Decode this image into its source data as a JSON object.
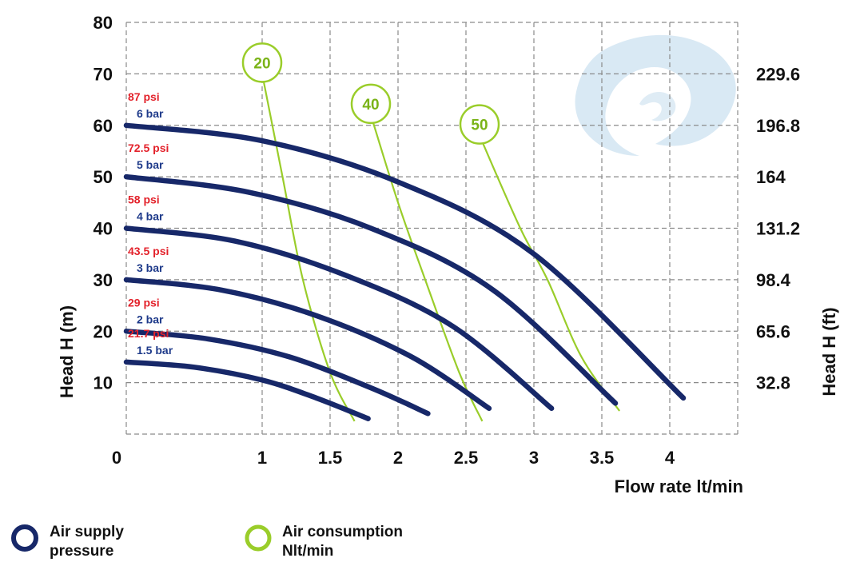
{
  "colors": {
    "pressure": "#172869",
    "consumption": "#9acd2a",
    "psi_label": "#e3222b",
    "bar_label": "#1e3a8a",
    "grid": "#8a8a8a",
    "watermark": "#c9e0ef"
  },
  "icons": {
    "watermark": "swirl-logo-icon"
  },
  "chart_data": {
    "type": "line",
    "xlabel": "Flow rate  lt/min",
    "ylabel": "Head H (m)",
    "ylabel_right": "Head H (ft)",
    "xlim": [
      0,
      4.5
    ],
    "ylim": [
      0,
      80
    ],
    "x_ticks": [
      0,
      1,
      1.5,
      2,
      2.5,
      3,
      3.5,
      4
    ],
    "x_tick_labels": [
      "0",
      "1",
      "1.5",
      "2",
      "2.5",
      "3",
      "3.5",
      "4"
    ],
    "y_ticks": [
      10,
      20,
      30,
      40,
      50,
      60,
      70,
      80
    ],
    "y_tick_labels": [
      "10",
      "20",
      "30",
      "40",
      "50",
      "60",
      "70",
      "80"
    ],
    "y_right_ticks": [
      10,
      20,
      30,
      40,
      50,
      60,
      70
    ],
    "y_right_tick_labels": [
      "32.8",
      "65.6",
      "98.4",
      "131.2",
      "164",
      "196.8",
      "229.6"
    ],
    "grid": true,
    "series": [
      {
        "psi": "21.7 psi",
        "bar": "1.5 bar",
        "group": "pressure",
        "x": [
          0,
          0.5,
          1.0,
          1.4,
          1.78
        ],
        "y": [
          14,
          13,
          10.5,
          7,
          3
        ]
      },
      {
        "psi": "29 psi",
        "bar": "2 bar",
        "group": "pressure",
        "x": [
          0,
          0.6,
          1.2,
          1.8,
          2.22
        ],
        "y": [
          20,
          18.5,
          15,
          9,
          4
        ]
      },
      {
        "psi": "43.5 psi",
        "bar": "3 bar",
        "group": "pressure",
        "x": [
          0,
          0.7,
          1.4,
          2.1,
          2.67
        ],
        "y": [
          30,
          28,
          23,
          15,
          5
        ]
      },
      {
        "psi": "58 psi",
        "bar": "4 bar",
        "group": "pressure",
        "x": [
          0,
          0.8,
          1.6,
          2.4,
          3.13
        ],
        "y": [
          40,
          37.5,
          31,
          21,
          5
        ]
      },
      {
        "psi": "72.5 psi",
        "bar": "5 bar",
        "group": "pressure",
        "x": [
          0,
          0.9,
          1.8,
          2.7,
          3.6
        ],
        "y": [
          50,
          47,
          40,
          28,
          6
        ]
      },
      {
        "psi": "87 psi",
        "bar": "6 bar",
        "group": "pressure",
        "x": [
          0,
          1.0,
          2.0,
          3.0,
          4.1
        ],
        "y": [
          60,
          57,
          49,
          35,
          7
        ]
      },
      {
        "name": "20",
        "group": "consumption",
        "x": [
          1.0,
          1.15,
          1.3,
          1.5,
          1.68
        ],
        "y": [
          70,
          50,
          30,
          12,
          2.5
        ]
      },
      {
        "name": "40",
        "group": "consumption",
        "x": [
          1.8,
          2.0,
          2.2,
          2.45,
          2.62
        ],
        "y": [
          62,
          45,
          30,
          12,
          2.5
        ]
      },
      {
        "name": "50",
        "group": "consumption",
        "x": [
          2.6,
          2.9,
          3.1,
          3.35,
          3.63
        ],
        "y": [
          58,
          40,
          30,
          15,
          4.5
        ]
      }
    ]
  },
  "legend": [
    {
      "label_line1": "Air supply",
      "label_line2": "pressure",
      "group": "pressure"
    },
    {
      "label_line1": "Air consumption",
      "label_line2": "Nlt/min",
      "group": "consumption"
    }
  ]
}
